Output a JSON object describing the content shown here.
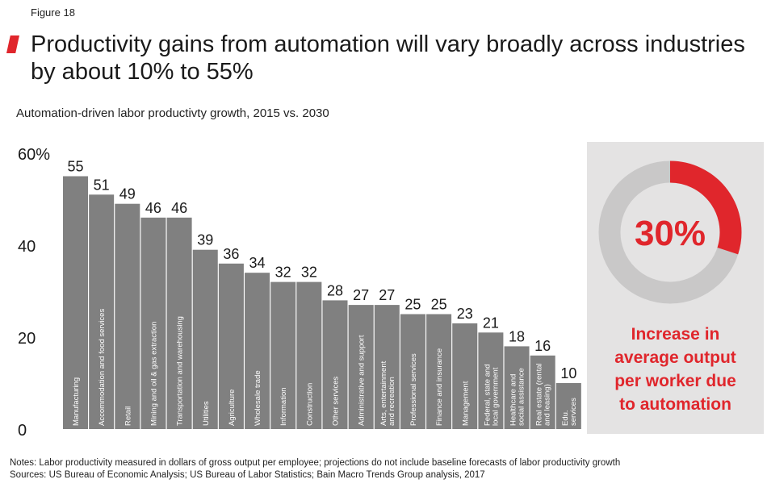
{
  "figure_label": "Figure 18",
  "title": "Productivity gains from automation will vary broadly across industries by about 10% to 55%",
  "subtitle": "Automation-driven labor productivty growth, 2015 vs. 2030",
  "colors": {
    "bar": "#808080",
    "accent": "#e0262c",
    "panel": "#e4e3e3",
    "ring": "#c9c8c8"
  },
  "chart_data": {
    "type": "bar",
    "title": "Automation-driven labor productivty growth, 2015 vs. 2030",
    "xlabel": "",
    "ylabel": "",
    "ylim": [
      0,
      60
    ],
    "yticks": [
      0,
      20,
      40,
      60
    ],
    "ytick_labels": [
      "0",
      "20",
      "40",
      "60%"
    ],
    "grid": false,
    "categories": [
      [
        "Manufacturing"
      ],
      [
        "Accommodation and food services"
      ],
      [
        "Retail"
      ],
      [
        "Mining and oil & gas extraction"
      ],
      [
        "Transportation and warehousing"
      ],
      [
        "Utilities"
      ],
      [
        "Agriculture"
      ],
      [
        "Wholesale trade"
      ],
      [
        "Information"
      ],
      [
        "Construction"
      ],
      [
        "Other services"
      ],
      [
        "Administrative and support"
      ],
      [
        "Arts, entertainment",
        "and recreation"
      ],
      [
        "Professional services"
      ],
      [
        "Finance and insurance"
      ],
      [
        "Management"
      ],
      [
        "Federal, state and",
        "local government"
      ],
      [
        "Healthcare and",
        "social assistance"
      ],
      [
        "Real estate (rental",
        "and leasing)"
      ],
      [
        "Edu.",
        "services"
      ]
    ],
    "values": [
      55,
      51,
      49,
      46,
      46,
      39,
      36,
      34,
      32,
      32,
      28,
      27,
      27,
      25,
      25,
      23,
      21,
      18,
      16,
      10
    ]
  },
  "highlight": {
    "value_label": "30%",
    "fraction": 0.3,
    "caption": [
      "Increase in",
      "average output",
      "per worker due",
      "to automation"
    ]
  },
  "notes": "Notes: Labor productivity measured in dollars of gross output per employee; projections do not include baseline forecasts of labor productivity growth",
  "sources": "Sources: US Bureau of Economic Analysis; US Bureau of Labor Statistics; Bain Macro Trends Group analysis, 2017"
}
